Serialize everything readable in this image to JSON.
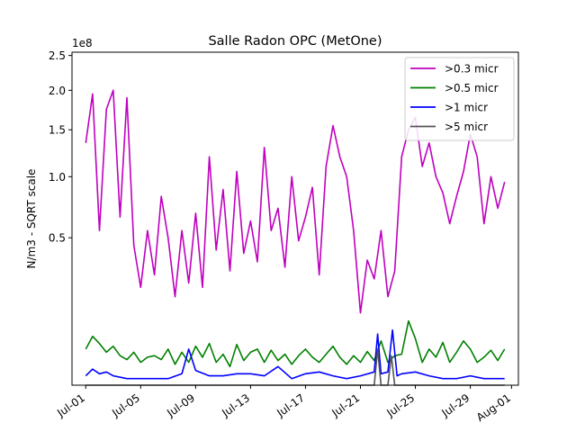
{
  "chart_data": {
    "type": "line",
    "title": "Salle Radon OPC (MetOne)",
    "ylabel": "N/m3 - SQRT scale",
    "xlabel": "",
    "y_scale": "sqrt",
    "y_multiplier_label": "1e8",
    "ylim": [
      0,
      2.55
    ],
    "xlim": [
      "2023-06-30T00:00",
      "2023-08-01T12:00"
    ],
    "x_ticks": [
      "Jul-01",
      "Jul-05",
      "Jul-09",
      "Jul-13",
      "Jul-17",
      "Jul-21",
      "Jul-25",
      "Jul-29",
      "Aug-01"
    ],
    "x_tick_dates": [
      "2023-07-01",
      "2023-07-05",
      "2023-07-09",
      "2023-07-13",
      "2023-07-17",
      "2023-07-21",
      "2023-07-25",
      "2023-07-29",
      "2023-08-01"
    ],
    "y_ticks": [
      0.5,
      1.0,
      1.5,
      2.0,
      2.5
    ],
    "y_tick_labels": [
      "0.5",
      "1.0",
      "1.5",
      "2.0",
      "2.5"
    ],
    "legend_position": "top-right",
    "grid": false,
    "series": [
      {
        "name": ">0.3 micr",
        "color": "#bf00bf",
        "x": [
          "2023-07-01T00:00",
          "2023-07-01T12:00",
          "2023-07-02T00:00",
          "2023-07-02T12:00",
          "2023-07-03T00:00",
          "2023-07-03T12:00",
          "2023-07-04T00:00",
          "2023-07-04T12:00",
          "2023-07-05T00:00",
          "2023-07-05T12:00",
          "2023-07-06T00:00",
          "2023-07-06T12:00",
          "2023-07-07T00:00",
          "2023-07-07T12:00",
          "2023-07-08T00:00",
          "2023-07-08T12:00",
          "2023-07-09T00:00",
          "2023-07-09T12:00",
          "2023-07-10T00:00",
          "2023-07-10T12:00",
          "2023-07-11T00:00",
          "2023-07-11T12:00",
          "2023-07-12T00:00",
          "2023-07-12T12:00",
          "2023-07-13T00:00",
          "2023-07-13T12:00",
          "2023-07-14T00:00",
          "2023-07-14T12:00",
          "2023-07-15T00:00",
          "2023-07-15T12:00",
          "2023-07-16T00:00",
          "2023-07-16T12:00",
          "2023-07-17T00:00",
          "2023-07-17T12:00",
          "2023-07-18T00:00",
          "2023-07-18T12:00",
          "2023-07-19T00:00",
          "2023-07-19T12:00",
          "2023-07-20T00:00",
          "2023-07-20T12:00",
          "2023-07-21T00:00",
          "2023-07-21T12:00",
          "2023-07-22T00:00",
          "2023-07-22T12:00",
          "2023-07-23T00:00",
          "2023-07-23T12:00",
          "2023-07-24T00:00",
          "2023-07-24T12:00",
          "2023-07-25T00:00",
          "2023-07-25T12:00",
          "2023-07-26T00:00",
          "2023-07-26T12:00",
          "2023-07-27T00:00",
          "2023-07-27T12:00",
          "2023-07-28T00:00",
          "2023-07-28T12:00",
          "2023-07-29T00:00",
          "2023-07-29T12:00",
          "2023-07-30T00:00",
          "2023-07-30T12:00",
          "2023-07-31T00:00",
          "2023-07-31T12:00"
        ],
        "y": [
          1.35,
          1.95,
          0.55,
          1.75,
          2.0,
          0.65,
          1.9,
          0.45,
          0.22,
          0.55,
          0.28,
          0.82,
          0.5,
          0.18,
          0.55,
          0.24,
          0.68,
          0.22,
          1.2,
          0.42,
          0.88,
          0.3,
          1.05,
          0.4,
          0.62,
          0.35,
          1.3,
          0.55,
          0.72,
          0.32,
          1.0,
          0.48,
          0.65,
          0.9,
          0.28,
          1.1,
          1.55,
          1.2,
          1.0,
          0.55,
          0.12,
          0.36,
          0.26,
          0.55,
          0.18,
          0.3,
          1.2,
          1.5,
          1.65,
          1.1,
          1.35,
          1.0,
          0.85,
          0.6,
          0.82,
          1.05,
          1.45,
          1.2,
          0.6,
          1.0,
          0.72,
          0.95
        ]
      },
      {
        "name": ">0.5 micr",
        "color": "#008000",
        "x": [
          "2023-07-01T00:00",
          "2023-07-01T12:00",
          "2023-07-02T00:00",
          "2023-07-02T12:00",
          "2023-07-03T00:00",
          "2023-07-03T12:00",
          "2023-07-04T00:00",
          "2023-07-04T12:00",
          "2023-07-05T00:00",
          "2023-07-05T12:00",
          "2023-07-06T00:00",
          "2023-07-06T12:00",
          "2023-07-07T00:00",
          "2023-07-07T12:00",
          "2023-07-08T00:00",
          "2023-07-08T12:00",
          "2023-07-09T00:00",
          "2023-07-09T12:00",
          "2023-07-10T00:00",
          "2023-07-10T12:00",
          "2023-07-11T00:00",
          "2023-07-11T12:00",
          "2023-07-12T00:00",
          "2023-07-12T12:00",
          "2023-07-13T00:00",
          "2023-07-13T12:00",
          "2023-07-14T00:00",
          "2023-07-14T12:00",
          "2023-07-15T00:00",
          "2023-07-15T12:00",
          "2023-07-16T00:00",
          "2023-07-16T12:00",
          "2023-07-17T00:00",
          "2023-07-17T12:00",
          "2023-07-18T00:00",
          "2023-07-18T12:00",
          "2023-07-19T00:00",
          "2023-07-19T12:00",
          "2023-07-20T00:00",
          "2023-07-20T12:00",
          "2023-07-21T00:00",
          "2023-07-21T12:00",
          "2023-07-22T00:00",
          "2023-07-22T12:00",
          "2023-07-23T00:00",
          "2023-07-23T12:00",
          "2023-07-24T00:00",
          "2023-07-24T12:00",
          "2023-07-25T00:00",
          "2023-07-25T12:00",
          "2023-07-26T00:00",
          "2023-07-26T12:00",
          "2023-07-27T00:00",
          "2023-07-27T12:00",
          "2023-07-28T00:00",
          "2023-07-28T12:00",
          "2023-07-29T00:00",
          "2023-07-29T12:00",
          "2023-07-30T00:00",
          "2023-07-30T12:00",
          "2023-07-31T00:00",
          "2023-07-31T12:00"
        ],
        "y": [
          0.03,
          0.055,
          0.04,
          0.025,
          0.035,
          0.02,
          0.015,
          0.025,
          0.012,
          0.018,
          0.02,
          0.015,
          0.03,
          0.01,
          0.025,
          0.012,
          0.035,
          0.018,
          0.04,
          0.012,
          0.022,
          0.008,
          0.038,
          0.014,
          0.025,
          0.03,
          0.012,
          0.028,
          0.014,
          0.022,
          0.01,
          0.02,
          0.03,
          0.018,
          0.012,
          0.022,
          0.035,
          0.018,
          0.01,
          0.02,
          0.012,
          0.026,
          0.014,
          0.045,
          0.012,
          0.02,
          0.022,
          0.095,
          0.05,
          0.012,
          0.03,
          0.018,
          0.042,
          0.012,
          0.025,
          0.045,
          0.03,
          0.012,
          0.018,
          0.028,
          0.014,
          0.03
        ]
      },
      {
        "name": ">1 micr",
        "color": "#0000ff",
        "x": [
          "2023-07-01T00:00",
          "2023-07-01T12:00",
          "2023-07-02T00:00",
          "2023-07-02T12:00",
          "2023-07-03T00:00",
          "2023-07-04T00:00",
          "2023-07-05T00:00",
          "2023-07-06T00:00",
          "2023-07-07T00:00",
          "2023-07-08T00:00",
          "2023-07-08T12:00",
          "2023-07-09T00:00",
          "2023-07-10T00:00",
          "2023-07-11T00:00",
          "2023-07-12T00:00",
          "2023-07-13T00:00",
          "2023-07-14T00:00",
          "2023-07-15T00:00",
          "2023-07-16T00:00",
          "2023-07-17T00:00",
          "2023-07-18T00:00",
          "2023-07-19T00:00",
          "2023-07-20T00:00",
          "2023-07-21T00:00",
          "2023-07-22T00:00",
          "2023-07-22T06:00",
          "2023-07-22T12:00",
          "2023-07-23T00:00",
          "2023-07-23T08:00",
          "2023-07-23T16:00",
          "2023-07-24T00:00",
          "2023-07-25T00:00",
          "2023-07-26T00:00",
          "2023-07-27T00:00",
          "2023-07-28T00:00",
          "2023-07-29T00:00",
          "2023-07-30T00:00",
          "2023-07-31T00:00",
          "2023-07-31T12:00"
        ],
        "y": [
          0.002,
          0.006,
          0.003,
          0.004,
          0.002,
          0.001,
          0.001,
          0.001,
          0.001,
          0.003,
          0.03,
          0.005,
          0.002,
          0.002,
          0.003,
          0.003,
          0.002,
          0.008,
          0.001,
          0.003,
          0.004,
          0.002,
          0.001,
          0.002,
          0.004,
          0.06,
          0.003,
          0.004,
          0.07,
          0.002,
          0.003,
          0.004,
          0.002,
          0.001,
          0.001,
          0.002,
          0.001,
          0.001,
          0.001
        ]
      },
      {
        "name": ">5 micr",
        "color": "#555555",
        "x": [
          "2023-07-01T00:00",
          "2023-07-05T00:00",
          "2023-07-10T00:00",
          "2023-07-15T00:00",
          "2023-07-20T00:00",
          "2023-07-22T00:00",
          "2023-07-22T06:00",
          "2023-07-22T12:00",
          "2023-07-23T00:00",
          "2023-07-23T06:00",
          "2023-07-23T12:00",
          "2023-07-24T00:00",
          "2023-07-28T00:00",
          "2023-07-31T12:00"
        ],
        "y": [
          0.0,
          0.0,
          0.0,
          0.0,
          0.0,
          0.0,
          0.03,
          0.0,
          0.0,
          0.02,
          0.0,
          0.0,
          0.0,
          0.0
        ]
      }
    ]
  }
}
